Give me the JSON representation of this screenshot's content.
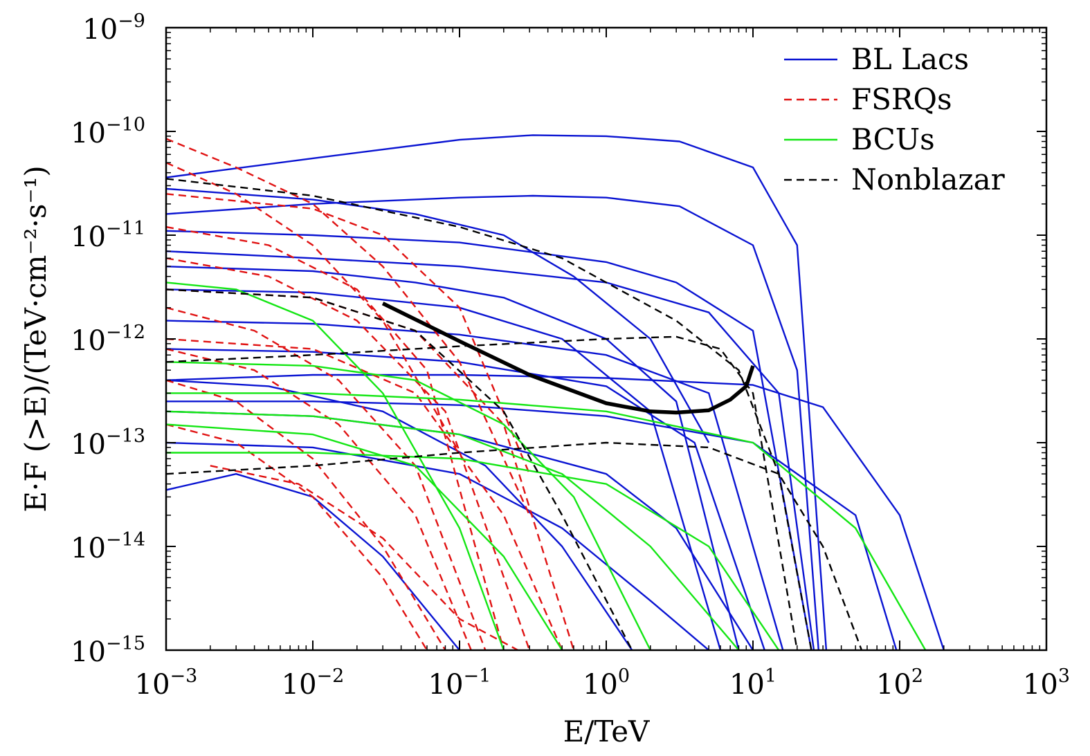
{
  "chart_data": {
    "type": "line",
    "xlabel": "E/TeV",
    "ylabel": "E·F (>E)/(TeV·cm⁻²·s⁻¹)",
    "x_scale": "log",
    "y_scale": "log",
    "xlim": [
      0.001,
      1000
    ],
    "ylim": [
      1e-15,
      1e-09
    ],
    "x_ticks": [
      {
        "value": 0.001,
        "base": "10",
        "exp": "−3"
      },
      {
        "value": 0.01,
        "base": "10",
        "exp": "−2"
      },
      {
        "value": 0.1,
        "base": "10",
        "exp": "−1"
      },
      {
        "value": 1,
        "base": "10",
        "exp": "0"
      },
      {
        "value": 10,
        "base": "10",
        "exp": "1"
      },
      {
        "value": 100,
        "base": "10",
        "exp": "2"
      },
      {
        "value": 1000,
        "base": "10",
        "exp": "3"
      }
    ],
    "y_ticks": [
      {
        "value": 1e-15,
        "base": "10",
        "exp": "−15"
      },
      {
        "value": 1e-14,
        "base": "10",
        "exp": "−14"
      },
      {
        "value": 1e-13,
        "base": "10",
        "exp": "−13"
      },
      {
        "value": 1e-12,
        "base": "10",
        "exp": "−12"
      },
      {
        "value": 1e-11,
        "base": "10",
        "exp": "−11"
      },
      {
        "value": 1e-10,
        "base": "10",
        "exp": "−10"
      },
      {
        "value": 1e-09,
        "base": "10",
        "exp": "−9"
      }
    ],
    "grid": false,
    "legend_position": "top-right",
    "series": [
      {
        "name": "BL Lacs",
        "color": "#0a14d2",
        "dash": "solid",
        "curves": [
          {
            "x": [
              0.001,
              0.01,
              0.1,
              0.316,
              1,
              3.16,
              10,
              20,
              31.6
            ],
            "y": [
              3.6e-11,
              5.5e-11,
              8.3e-11,
              9.2e-11,
              9e-11,
              8e-11,
              4.5e-11,
              8e-12,
              1e-15
            ]
          },
          {
            "x": [
              0.001,
              0.01,
              0.1,
              0.316,
              1,
              3.16,
              10,
              20,
              28
            ],
            "y": [
              1.6e-11,
              2e-11,
              2.3e-11,
              2.4e-11,
              2.3e-11,
              1.9e-11,
              8e-12,
              5e-13,
              1e-15
            ]
          },
          {
            "x": [
              0.001,
              0.01,
              0.05,
              0.2,
              0.6,
              2,
              5
            ],
            "y": [
              2.8e-11,
              2.2e-11,
              1.6e-11,
              1e-11,
              4e-12,
              1e-12,
              1e-13
            ]
          },
          {
            "x": [
              0.001,
              0.01,
              0.1,
              1,
              3,
              10,
              25
            ],
            "y": [
              1.1e-11,
              1e-11,
              8.5e-12,
              5.5e-12,
              3.5e-12,
              1.2e-12,
              1e-15
            ]
          },
          {
            "x": [
              0.001,
              0.01,
              0.1,
              1,
              5,
              15,
              26
            ],
            "y": [
              7e-12,
              6e-12,
              5e-12,
              3.5e-12,
              1.8e-12,
              3e-13,
              1e-15
            ]
          },
          {
            "x": [
              0.001,
              0.01,
              0.1,
              1,
              10,
              30,
              100,
              200
            ],
            "y": [
              4e-13,
              4.5e-13,
              4.5e-13,
              4.2e-13,
              3.6e-13,
              2.2e-13,
              2e-14,
              1e-15
            ]
          },
          {
            "x": [
              0.001,
              0.01,
              0.1,
              1,
              10,
              50,
              95
            ],
            "y": [
              2.5e-13,
              2.5e-13,
              2.3e-13,
              1.8e-13,
              1e-13,
              2e-14,
              1e-15
            ]
          },
          {
            "x": [
              0.001,
              0.01,
              0.05,
              0.2,
              1,
              3,
              8
            ],
            "y": [
              5e-12,
              4.5e-12,
              3.5e-12,
              2.5e-12,
              1e-12,
              2.5e-13,
              1e-15
            ]
          },
          {
            "x": [
              0.001,
              0.01,
              0.1,
              0.5,
              2,
              6
            ],
            "y": [
              3e-12,
              2.8e-12,
              2e-12,
              1e-12,
              2e-13,
              1e-15
            ]
          },
          {
            "x": [
              0.001,
              0.01,
              0.1,
              1,
              5,
              16
            ],
            "y": [
              1.5e-12,
              1.4e-12,
              1.1e-12,
              7e-13,
              3e-13,
              1e-15
            ]
          },
          {
            "x": [
              0.001,
              0.01,
              0.1,
              1,
              4,
              12
            ],
            "y": [
              8e-13,
              7.5e-13,
              6e-13,
              3.5e-13,
              1e-13,
              1e-15
            ]
          },
          {
            "x": [
              0.001,
              0.005,
              0.03,
              0.15,
              0.5,
              1.5
            ],
            "y": [
              4e-13,
              3.5e-13,
              2e-13,
              6e-14,
              1e-14,
              1e-15
            ]
          },
          {
            "x": [
              0.001,
              0.003,
              0.01,
              0.03,
              0.1
            ],
            "y": [
              3.5e-14,
              5e-14,
              3e-14,
              8e-15,
              1e-15
            ]
          },
          {
            "x": [
              0.001,
              0.01,
              0.1,
              1,
              3,
              10
            ],
            "y": [
              2e-13,
              1.8e-13,
              1.2e-13,
              5e-14,
              1.5e-14,
              1e-15
            ]
          },
          {
            "x": [
              0.001,
              0.01,
              0.1,
              0.5,
              2,
              5
            ],
            "y": [
              1e-13,
              9e-14,
              5e-14,
              1.5e-14,
              3e-15,
              1e-15
            ]
          }
        ]
      },
      {
        "name": "FSRQs",
        "color": "#e01212",
        "dash": "dashed",
        "curves": [
          {
            "x": [
              0.001,
              0.003,
              0.01,
              0.03,
              0.1,
              0.3
            ],
            "y": [
              8.5e-11,
              4.5e-11,
              2e-11,
              5e-12,
              6e-13,
              2e-14
            ]
          },
          {
            "x": [
              0.001,
              0.003,
              0.01,
              0.03,
              0.1
            ],
            "y": [
              5e-11,
              2.5e-11,
              8e-12,
              1.5e-12,
              8e-14
            ]
          },
          {
            "x": [
              0.001,
              0.01,
              0.03,
              0.1,
              0.3
            ],
            "y": [
              2.5e-11,
              1.8e-11,
              1e-11,
              2e-12,
              5e-14
            ]
          },
          {
            "x": [
              0.001,
              0.005,
              0.02,
              0.06,
              0.2
            ],
            "y": [
              1.2e-11,
              8e-12,
              3e-12,
              5e-13,
              1e-15
            ]
          },
          {
            "x": [
              0.001,
              0.005,
              0.02,
              0.08,
              0.3
            ],
            "y": [
              6e-12,
              4e-12,
              1.5e-12,
              2e-13,
              1e-15
            ]
          },
          {
            "x": [
              0.001,
              0.004,
              0.015,
              0.05,
              0.15
            ],
            "y": [
              2e-12,
              1.2e-12,
              4e-13,
              6e-14,
              1e-15
            ]
          },
          {
            "x": [
              0.001,
              0.004,
              0.015,
              0.05,
              0.12
            ],
            "y": [
              8e-13,
              5e-13,
              1.5e-13,
              2e-14,
              1e-15
            ]
          },
          {
            "x": [
              0.001,
              0.003,
              0.01,
              0.03,
              0.08
            ],
            "y": [
              4e-13,
              2.5e-13,
              7e-14,
              1e-14,
              1e-15
            ]
          },
          {
            "x": [
              0.001,
              0.003,
              0.01,
              0.03,
              0.06
            ],
            "y": [
              1.5e-13,
              1e-13,
              3e-14,
              5e-15,
              1e-15
            ]
          },
          {
            "x": [
              0.001,
              0.01,
              0.05,
              0.2,
              0.6
            ],
            "y": [
              3e-12,
              2.5e-12,
              1.2e-12,
              1.5e-13,
              1e-15
            ]
          },
          {
            "x": [
              0.001,
              0.01,
              0.05,
              0.2,
              0.5
            ],
            "y": [
              1e-12,
              8e-13,
              3e-13,
              2e-14,
              1e-15
            ]
          },
          {
            "x": [
              0.002,
              0.008,
              0.03,
              0.1,
              0.25
            ],
            "y": [
              6e-14,
              4e-14,
              1.2e-14,
              2e-15,
              1e-15
            ]
          }
        ]
      },
      {
        "name": "BCUs",
        "color": "#14e614",
        "dash": "solid",
        "curves": [
          {
            "x": [
              0.001,
              0.01,
              0.1,
              1,
              10,
              50,
              150
            ],
            "y": [
              3e-13,
              3e-13,
              2.6e-13,
              2e-13,
              1e-13,
              1.5e-14,
              1e-15
            ]
          },
          {
            "x": [
              0.001,
              0.01,
              0.05,
              0.2,
              0.6,
              2
            ],
            "y": [
              6e-13,
              5.5e-13,
              4e-13,
              1.5e-13,
              3e-14,
              1e-15
            ]
          },
          {
            "x": [
              0.001,
              0.003,
              0.01,
              0.03,
              0.1,
              0.2
            ],
            "y": [
              3.5e-12,
              3e-12,
              1.5e-12,
              3e-13,
              1.5e-14,
              1e-15
            ]
          },
          {
            "x": [
              0.001,
              0.01,
              0.05,
              0.2,
              0.5
            ],
            "y": [
              1.5e-13,
              1.2e-13,
              6e-14,
              8e-15,
              1e-15
            ]
          },
          {
            "x": [
              0.001,
              0.01,
              0.1,
              1,
              5,
              15
            ],
            "y": [
              8e-14,
              8e-14,
              7e-14,
              4e-14,
              1e-14,
              1e-15
            ]
          },
          {
            "x": [
              0.001,
              0.01,
              0.1,
              0.5,
              2,
              8
            ],
            "y": [
              2e-13,
              1.8e-13,
              1.2e-13,
              5e-14,
              1e-14,
              1e-15
            ]
          }
        ]
      },
      {
        "name": "Nonblazar",
        "color": "#000000",
        "dash": "dashed",
        "curves": [
          {
            "x": [
              0.001,
              0.01,
              0.1,
              0.5,
              1,
              3,
              8,
              15,
              25
            ],
            "y": [
              3.5e-11,
              2.4e-11,
              1.2e-11,
              6e-12,
              3.5e-12,
              1.5e-12,
              5e-13,
              5e-14,
              1e-15
            ]
          },
          {
            "x": [
              0.001,
              0.01,
              0.1,
              1,
              3,
              6,
              10,
              20
            ],
            "y": [
              6e-13,
              7e-13,
              8.5e-13,
              1e-12,
              1.05e-12,
              8e-13,
              3e-13,
              1e-15
            ]
          },
          {
            "x": [
              0.001,
              0.01,
              0.1,
              1,
              5,
              15,
              30,
              55
            ],
            "y": [
              5e-14,
              6e-14,
              8e-14,
              1e-13,
              9e-14,
              5e-14,
              1e-14,
              1e-15
            ]
          },
          {
            "x": [
              0.001,
              0.01,
              0.05,
              0.2,
              0.5,
              1.5
            ],
            "y": [
              3e-12,
              2.5e-12,
              1.2e-12,
              2e-13,
              2e-14,
              1e-15
            ]
          }
        ]
      },
      {
        "name": "",
        "color": "#000000",
        "dash": "thick",
        "curves": [
          {
            "x": [
              0.03,
              0.1,
              0.3,
              1,
              2,
              3,
              5,
              7,
              9,
              10
            ],
            "y": [
              2.2e-12,
              9.5e-13,
              4.5e-13,
              2.4e-13,
              2e-13,
              1.95e-13,
              2.05e-13,
              2.6e-13,
              3.5e-13,
              5.5e-13
            ]
          }
        ]
      }
    ]
  }
}
